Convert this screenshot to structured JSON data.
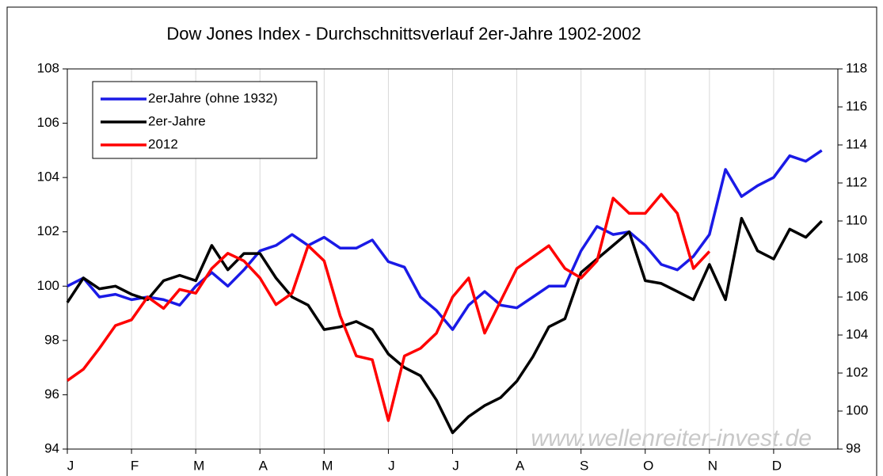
{
  "chart_data": {
    "type": "line",
    "title": "Dow Jones Index - Durchschnittsverlauf 2er-Jahre 1902-2002",
    "annotation": "www.wellenreiter-invest.de",
    "legend": "upper left",
    "x": [
      0,
      0.25,
      0.5,
      0.75,
      1,
      1.25,
      1.5,
      1.75,
      2,
      2.25,
      2.5,
      2.75,
      3,
      3.25,
      3.5,
      3.75,
      4,
      4.25,
      4.5,
      4.75,
      5,
      5.25,
      5.5,
      5.75,
      6,
      6.25,
      6.5,
      6.75,
      7,
      7.25,
      7.5,
      7.75,
      8,
      8.25,
      8.5,
      8.75,
      9,
      9.25,
      9.5,
      9.75,
      10,
      10.25,
      10.5,
      10.75,
      11,
      11.25,
      11.5,
      11.75
    ],
    "xlim": [
      0,
      12
    ],
    "xticks": [
      {
        "value": 0,
        "label": "J"
      },
      {
        "value": 1,
        "label": "F"
      },
      {
        "value": 2,
        "label": "M"
      },
      {
        "value": 3,
        "label": "A"
      },
      {
        "value": 4,
        "label": "M"
      },
      {
        "value": 5,
        "label": "J"
      },
      {
        "value": 6,
        "label": "J"
      },
      {
        "value": 7,
        "label": "A"
      },
      {
        "value": 8,
        "label": "S"
      },
      {
        "value": 9,
        "label": "O"
      },
      {
        "value": 10,
        "label": "N"
      },
      {
        "value": 11,
        "label": "D"
      }
    ],
    "ylim": [
      94,
      108
    ],
    "yticks": [
      94,
      96,
      98,
      100,
      102,
      104,
      106,
      108
    ],
    "y2lim": [
      98,
      118
    ],
    "y2ticks": [
      98,
      100,
      102,
      104,
      106,
      108,
      110,
      112,
      114,
      116,
      118
    ],
    "series": [
      {
        "name": "2erJahre (ohne 1932)",
        "color": "#1a1ae6",
        "values": [
          100.0,
          100.3,
          99.6,
          99.7,
          99.5,
          99.6,
          99.5,
          99.3,
          100.0,
          100.5,
          100.0,
          100.6,
          101.3,
          101.5,
          101.9,
          101.5,
          101.8,
          101.4,
          101.4,
          101.7,
          100.9,
          100.7,
          99.6,
          99.1,
          98.4,
          99.3,
          99.8,
          99.3,
          99.2,
          99.6,
          100.0,
          100.0,
          101.3,
          102.2,
          101.9,
          102.0,
          101.5,
          100.8,
          100.6,
          101.1,
          101.9,
          104.3,
          103.3,
          103.7,
          104.0,
          104.8,
          104.6,
          105.0
        ]
      },
      {
        "name": "2er-Jahre",
        "color": "#000000",
        "values": [
          99.4,
          100.3,
          99.9,
          100.0,
          99.7,
          99.5,
          100.2,
          100.4,
          100.2,
          101.5,
          100.6,
          101.2,
          101.2,
          100.3,
          99.6,
          99.3,
          98.4,
          98.5,
          98.7,
          98.4,
          97.5,
          97.0,
          96.7,
          95.8,
          94.6,
          95.2,
          95.6,
          95.9,
          96.5,
          97.4,
          98.5,
          98.8,
          100.5,
          101.0,
          101.5,
          102.0,
          100.2,
          100.1,
          99.8,
          99.5,
          100.8,
          99.5,
          102.5,
          101.3,
          101.0,
          102.1,
          101.8,
          102.4
        ]
      },
      {
        "name": "2012",
        "color": "#ff0000",
        "axis": "y2",
        "values": [
          101.6,
          102.2,
          103.3,
          104.5,
          104.8,
          106.0,
          105.4,
          106.4,
          106.2,
          107.5,
          108.3,
          107.9,
          107.0,
          105.6,
          106.2,
          108.7,
          107.9,
          105.0,
          102.9,
          102.7,
          99.5,
          102.9,
          103.3,
          104.1,
          106.0,
          107.0,
          104.1,
          105.8,
          107.5,
          108.1,
          108.7,
          107.5,
          107.0,
          107.9,
          111.2,
          110.4,
          110.4,
          111.4,
          110.4,
          107.5,
          108.4,
          null,
          null,
          null,
          null,
          null,
          null,
          null
        ]
      }
    ]
  }
}
